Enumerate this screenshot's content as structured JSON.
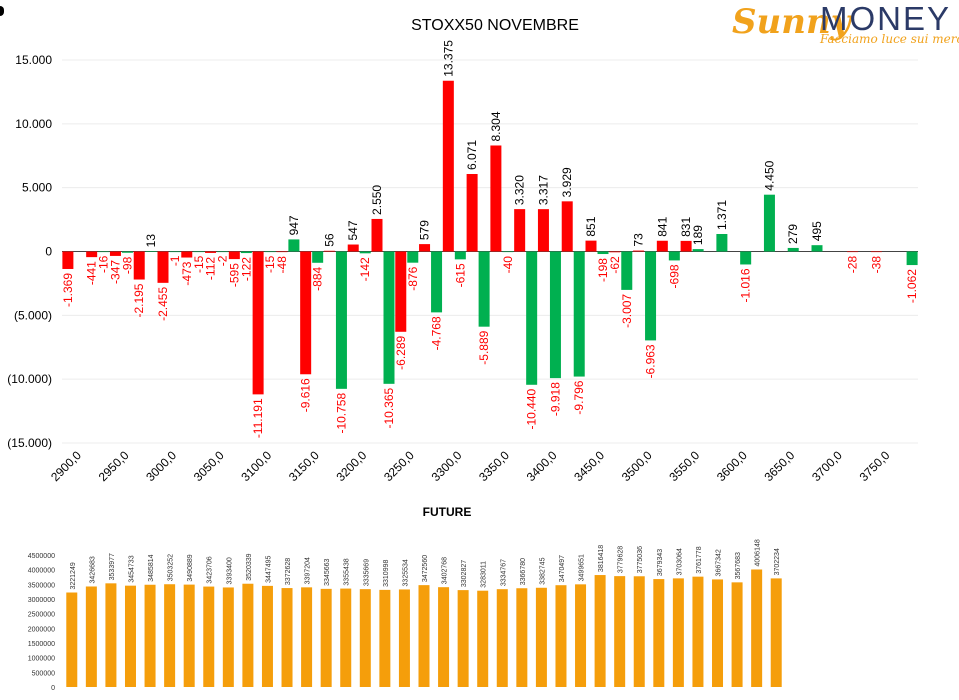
{
  "logo": {
    "brand_a": "Sunny",
    "brand_b": "MONEY",
    "tagline": "Facciamo luce sui mercati"
  },
  "colors": {
    "positive": "#00b050",
    "negative": "#ff0000",
    "future": "#f59e0b",
    "label_negative": "#ff0000",
    "label_positive": "#000000"
  },
  "chart_data": [
    {
      "type": "bar",
      "title": "STOXX50 NOVEMBRE",
      "xlabel": "",
      "ylabel": "",
      "ylim": [
        -15000,
        15000
      ],
      "yticks": [
        15000,
        10000,
        5000,
        0,
        -5000,
        -10000,
        -15000
      ],
      "ytick_labels": [
        "15.000",
        "10.000",
        "5.000",
        "0",
        "(5.000)",
        "(10.000)",
        "(15.000)"
      ],
      "grid": true,
      "strikes": [
        2900,
        2925,
        2950,
        2975,
        3000,
        3025,
        3050,
        3075,
        3100,
        3125,
        3150,
        3175,
        3200,
        3225,
        3250,
        3275,
        3300,
        3325,
        3350,
        3375,
        3400,
        3425,
        3450,
        3475,
        3500,
        3525,
        3550,
        3575,
        3600,
        3625,
        3650,
        3675,
        3700,
        3725,
        3750,
        3775
      ],
      "x_tick_labels": [
        "2900,0",
        "2950,0",
        "3000,0",
        "3050,0",
        "3100,0",
        "3150,0",
        "3200,0",
        "3250,0",
        "3300,0",
        "3350,0",
        "3400,0",
        "3450,0",
        "3500,0",
        "3550,0",
        "3600,0",
        "3650,0",
        "3700,0",
        "3750,0"
      ],
      "series": [
        {
          "color": "red",
          "values": [
            -1369,
            -441,
            -347,
            -2195,
            -2455,
            -473,
            -112,
            -595,
            -11191,
            -48,
            -9616,
            56,
            547,
            2550,
            -6289,
            579,
            13375,
            6071,
            8304,
            3320,
            3317,
            3929,
            851,
            -62,
            73,
            841,
            831,
            null,
            null,
            null,
            null,
            null,
            null,
            -28,
            -38,
            null
          ],
          "labels": [
            "-1.369",
            "-441",
            "-347",
            "-2.195",
            "-2.455",
            "-473",
            "-112",
            "-595",
            "-11.191",
            "-48",
            "-9.616",
            "56",
            "547",
            "2.550",
            "-6.289",
            "579",
            "13.375",
            "6.071",
            "8.304",
            "3.320",
            "3.317",
            "3.929",
            "851",
            "-62",
            "73",
            "841",
            "831",
            "",
            "",
            "",
            "",
            "",
            "",
            "-28",
            "-38",
            ""
          ]
        },
        {
          "color": "green",
          "values": [
            null,
            -16,
            -98,
            13,
            -1,
            -15,
            -2,
            -122,
            -15,
            947,
            -884,
            -10758,
            -142,
            -10365,
            -876,
            -4768,
            -615,
            -5889,
            -40,
            -10440,
            -9918,
            -9796,
            -198,
            -3007,
            -6963,
            -698,
            189,
            1371,
            -1016,
            4450,
            279,
            495,
            null,
            null,
            null,
            -1062
          ],
          "labels": [
            "",
            "-16",
            "-98",
            "13",
            "-1",
            "-15",
            "-2",
            "-122",
            "-15",
            "947",
            "-884",
            "-10.758",
            "-142",
            "-10.365",
            "-876",
            "-4.768",
            "-615",
            "-5.889",
            "-40",
            "-10.440",
            "-9.918",
            "-9.796",
            "-198",
            "-3.007",
            "-6.963",
            "-698",
            "189",
            "1.371",
            "-1.016",
            "4.450",
            "279",
            "495",
            "",
            "",
            "",
            "-1.062"
          ]
        }
      ]
    },
    {
      "type": "bar",
      "title": "FUTURE",
      "ylim": [
        0,
        4500000
      ],
      "yticks": [
        0,
        500000,
        1000000,
        1500000,
        2000000,
        2500000,
        3000000,
        3500000,
        4000000,
        4500000
      ],
      "ytick_labels": [
        "0",
        "500000",
        "1000000",
        "1500000",
        "2000000",
        "2500000",
        "3000000",
        "3500000",
        "4000000",
        "4500000"
      ],
      "values": [
        3221249,
        3426683,
        3533977,
        3454733,
        3485814,
        3503252,
        3490889,
        3423706,
        3393400,
        3520339,
        3447495,
        3372628,
        3397204,
        3345663,
        3355438,
        3335669,
        3310998,
        3325534,
        3472560,
        3402768,
        3302827,
        3283011,
        3334767,
        3366780,
        3382745,
        3470497,
        3499651,
        3816418,
        3779628,
        3775036,
        3679343,
        3703064,
        3761778,
        3667342,
        3567683,
        4006148,
        3702234
      ]
    }
  ]
}
